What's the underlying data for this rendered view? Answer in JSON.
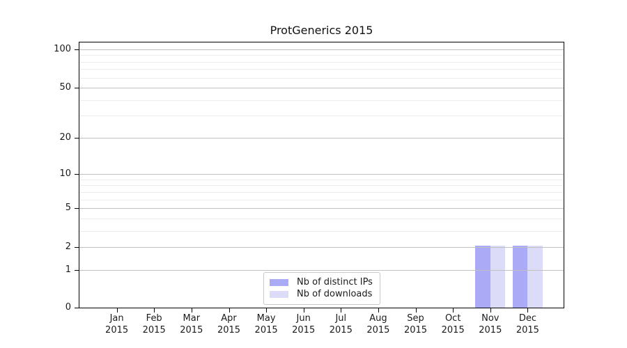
{
  "title": "ProtGenerics 2015",
  "colors": {
    "bar_distinct_ips": "#aaaaf7",
    "bar_downloads": "#dcdcf8",
    "grid_major": "#c0c0c0",
    "grid_minor": "#ececec",
    "axis": "#000000",
    "legend_border": "#c9c9c9",
    "background": "#ffffff"
  },
  "chart_data": {
    "type": "bar",
    "title": "ProtGenerics 2015",
    "xlabel": "",
    "ylabel": "",
    "yscale": "log1p",
    "ylim": [
      0,
      113
    ],
    "grid": "on",
    "legend_position": "lower center",
    "categories": [
      "Jan 2015",
      "Feb 2015",
      "Mar 2015",
      "Apr 2015",
      "May 2015",
      "Jun 2015",
      "Jul 2015",
      "Aug 2015",
      "Sep 2015",
      "Oct 2015",
      "Nov 2015",
      "Dec 2015"
    ],
    "yticks_major": [
      0,
      1,
      2,
      5,
      10,
      20,
      50,
      100
    ],
    "yticks_minor": [
      3,
      4,
      6,
      7,
      8,
      9,
      30,
      40,
      60,
      70,
      80,
      90
    ],
    "series": [
      {
        "name": "Nb of distinct IPs",
        "color": "#aaaaf7",
        "values": [
          0,
          0,
          0,
          0,
          0,
          0,
          0,
          0,
          0,
          0,
          2,
          2
        ]
      },
      {
        "name": "Nb of downloads",
        "color": "#dcdcf8",
        "values": [
          0,
          0,
          0,
          0,
          0,
          0,
          0,
          0,
          0,
          0,
          2,
          2
        ]
      }
    ]
  }
}
